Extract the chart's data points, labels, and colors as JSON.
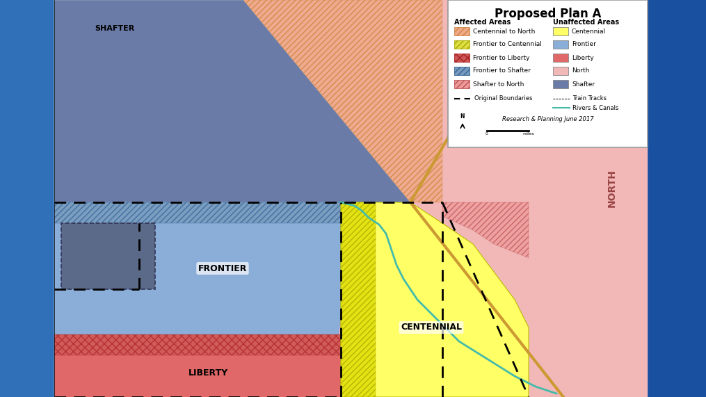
{
  "title": "Proposed Plan A",
  "legend_title_left": "Affected Areas",
  "legend_title_right": "Unaffected Areas",
  "bg_blue_left": "#2B6CB0",
  "bg_blue_right": "#1A4E8A",
  "north_color": "#F4BBBB",
  "shafter_color": "#6677AA",
  "frontier_color": "#8AADD8",
  "frontier_to_shafter_color": "#7799BB",
  "centennial_color": "#FFFF88",
  "liberty_color": "#E87878",
  "centennial_to_north_hatch_color": "#F4BBCC",
  "frontier_to_centennial_hatch_color": "#DDDD44",
  "shafter_to_north_hatch_color": "#EE8888",
  "note": "Research & Planning June 2017"
}
